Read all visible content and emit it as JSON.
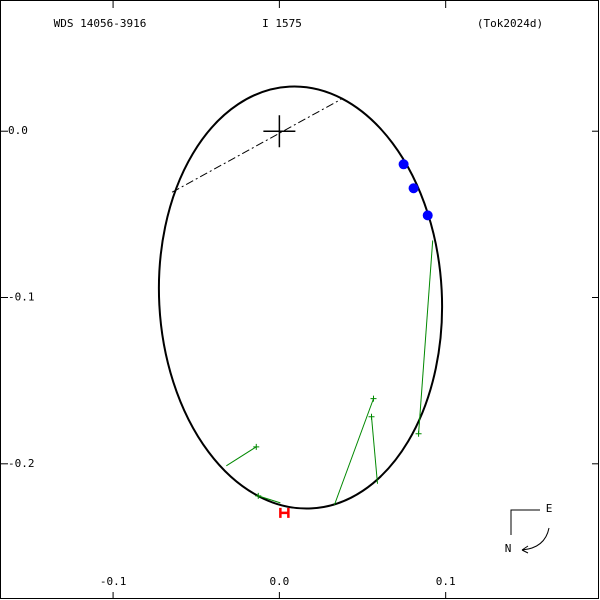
{
  "chart_data": {
    "type": "scatter",
    "labels": [
      "WDS 14056-3916",
      "I  1575",
      "(Tok2024d)"
    ],
    "xlim": [
      -0.168,
      0.1928
    ],
    "ylim": [
      -0.2819,
      0.0789
    ],
    "xticks": [
      -0.1,
      {
        "value": 0,
        "label": "0.0"
      },
      0.1
    ],
    "yticks": [
      {
        "value": 0,
        "label": "0.0"
      },
      -0.1,
      -0.2
    ],
    "orbit": {
      "center": [
        0.0127,
        -0.1
      ],
      "rx": 0.085,
      "ry": 0.127,
      "tilt": -3,
      "color": "#000000"
    },
    "node_line": {
      "x": [
        -0.0645,
        0.0373
      ],
      "y": [
        -0.0367,
        0.0193
      ]
    },
    "primary": [
      0,
      0
    ],
    "series": [
      {
        "color": "#0000ff",
        "marker": "circle",
        "x": [
          0.0747,
          0.0807,
          0.0892
        ],
        "y": [
          -0.0199,
          -0.0343,
          -0.0506
        ]
      },
      {
        "color": "#008800",
        "marker": "plus",
        "x": [
          -0.0139,
          -0.0127,
          0.0566,
          0.0554,
          0.0837
        ],
        "y": [
          -0.1898,
          -0.2193,
          -0.1608,
          -0.1717,
          -0.1819
        ],
        "to_x": [
          -0.0319,
          0.0006,
          0.0331,
          0.059,
          0.0922
        ],
        "to_y": [
          -0.2012,
          -0.2235,
          -0.2247,
          -0.212,
          -0.0657
        ]
      },
      {
        "color": "#ff0000",
        "marker": "H",
        "x": [
          0.003
        ],
        "y": [
          -0.2295
        ]
      }
    ],
    "compass": [
      "E",
      "N"
    ]
  }
}
